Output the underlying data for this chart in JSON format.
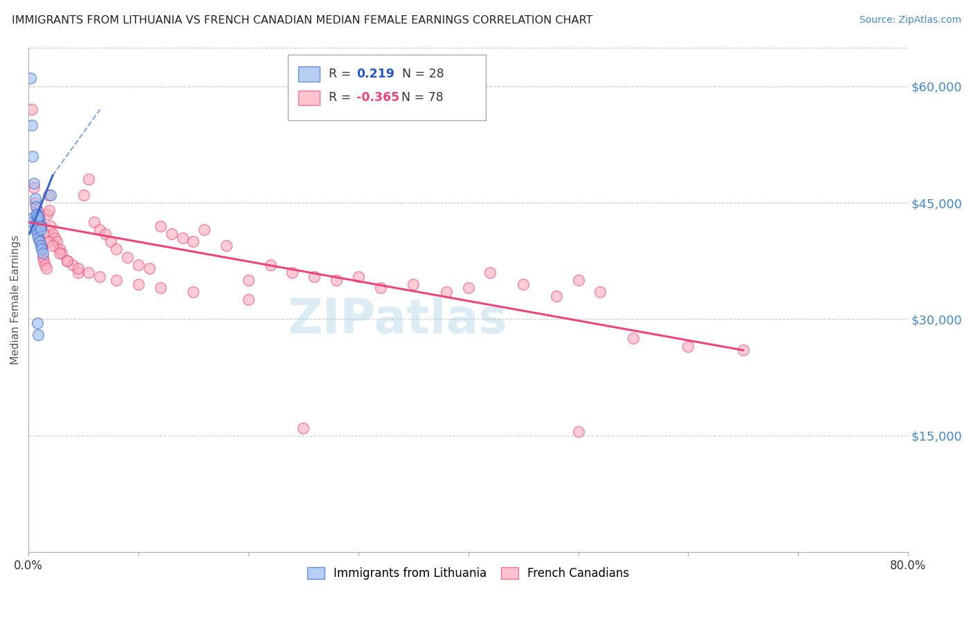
{
  "title": "IMMIGRANTS FROM LITHUANIA VS FRENCH CANADIAN MEDIAN FEMALE EARNINGS CORRELATION CHART",
  "source": "Source: ZipAtlas.com",
  "ylabel": "Median Female Earnings",
  "right_ytick_labels": [
    "$15,000",
    "$30,000",
    "$45,000",
    "$60,000"
  ],
  "right_ytick_values": [
    15000,
    30000,
    45000,
    60000
  ],
  "ylim": [
    0,
    65000
  ],
  "xlim": [
    0.0,
    0.8
  ],
  "background_color": "#ffffff",
  "grid_color": "#cccccc",
  "title_color": "#222222",
  "title_fontsize": 12.5,
  "watermark": "ZIPatlas",
  "watermark_color": "#a8d0e8",
  "blue_color": "#99bbee",
  "pink_color": "#ffaabb",
  "blue_line_color": "#3366cc",
  "pink_line_color": "#ee4477",
  "lithuania_x": [
    0.002,
    0.003,
    0.004,
    0.005,
    0.006,
    0.007,
    0.008,
    0.009,
    0.01,
    0.011,
    0.003,
    0.004,
    0.006,
    0.007,
    0.008,
    0.009,
    0.01,
    0.011,
    0.012,
    0.013,
    0.007,
    0.008,
    0.009,
    0.01,
    0.011,
    0.02,
    0.008,
    0.009
  ],
  "lithuania_y": [
    61000,
    55000,
    51000,
    47500,
    45500,
    44500,
    43500,
    43000,
    42500,
    42000,
    42500,
    43000,
    42000,
    41500,
    41000,
    40500,
    40000,
    39500,
    39000,
    38500,
    43500,
    42800,
    43200,
    42000,
    41500,
    46000,
    29500,
    28000
  ],
  "french_x": [
    0.003,
    0.005,
    0.006,
    0.007,
    0.008,
    0.009,
    0.01,
    0.011,
    0.012,
    0.013,
    0.014,
    0.015,
    0.016,
    0.017,
    0.018,
    0.019,
    0.02,
    0.022,
    0.024,
    0.026,
    0.028,
    0.03,
    0.035,
    0.04,
    0.045,
    0.05,
    0.055,
    0.06,
    0.065,
    0.07,
    0.075,
    0.08,
    0.09,
    0.1,
    0.11,
    0.12,
    0.13,
    0.14,
    0.15,
    0.16,
    0.18,
    0.2,
    0.22,
    0.24,
    0.26,
    0.28,
    0.3,
    0.32,
    0.35,
    0.38,
    0.4,
    0.42,
    0.45,
    0.48,
    0.5,
    0.52,
    0.55,
    0.6,
    0.65,
    0.008,
    0.01,
    0.012,
    0.014,
    0.018,
    0.022,
    0.028,
    0.035,
    0.045,
    0.055,
    0.065,
    0.08,
    0.1,
    0.12,
    0.15,
    0.2,
    0.25,
    0.5
  ],
  "french_y": [
    57000,
    47000,
    45000,
    43000,
    42500,
    41500,
    40500,
    40000,
    39500,
    38000,
    37500,
    37000,
    36500,
    43500,
    46000,
    44000,
    42000,
    41000,
    40500,
    40000,
    39000,
    38500,
    37500,
    37000,
    36000,
    46000,
    48000,
    42500,
    41500,
    41000,
    40000,
    39000,
    38000,
    37000,
    36500,
    42000,
    41000,
    40500,
    40000,
    41500,
    39500,
    35000,
    37000,
    36000,
    35500,
    35000,
    35500,
    34000,
    34500,
    33500,
    34000,
    36000,
    34500,
    33000,
    35000,
    33500,
    27500,
    26500,
    26000,
    44000,
    43000,
    42000,
    41000,
    40000,
    39500,
    38500,
    37500,
    36500,
    36000,
    35500,
    35000,
    34500,
    34000,
    33500,
    32500,
    16000,
    15500
  ]
}
